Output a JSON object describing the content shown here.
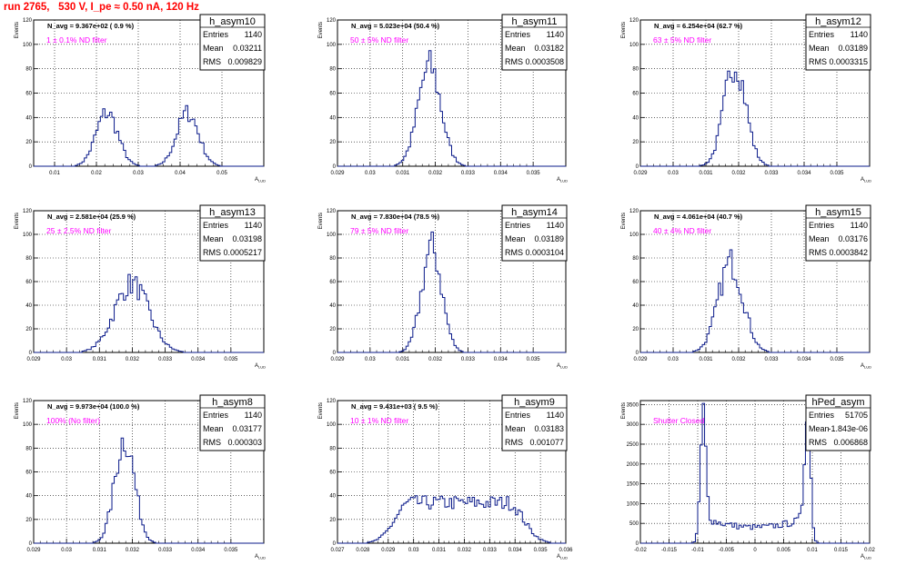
{
  "page_title": "run 2765,   530 V, I_pe ≈ 0.50 nA, 120 Hz",
  "chart_data": [
    {
      "type": "histogram",
      "hist_name": "h_asym10",
      "ylabel": "Events",
      "xlabel": "A_{LUD}",
      "navg_text": "N_avg = 9.367e+02 ( 0.9 %)",
      "filter_text": "1 ± 0.1% ND filter",
      "stats": [
        [
          "Entries",
          "1140"
        ],
        [
          "Mean",
          "0.03211"
        ],
        [
          "RMS",
          "0.009829"
        ]
      ],
      "xlim": [
        0.005,
        0.06
      ],
      "ylim": [
        0,
        120
      ],
      "xticks": [
        0.01,
        0.02,
        0.03,
        0.04,
        0.05
      ],
      "xtick_labels": [
        "0.01",
        "0.02",
        "0.03",
        "0.04",
        "0.05"
      ],
      "yticks": [
        0,
        20,
        40,
        60,
        80,
        100,
        120
      ],
      "peaks": [
        {
          "center": 0.0225,
          "sigma": 0.0026,
          "amplitude": 44
        },
        {
          "center": 0.0418,
          "sigma": 0.0026,
          "amplitude": 44
        }
      ]
    },
    {
      "type": "histogram",
      "hist_name": "h_asym11",
      "ylabel": "Events",
      "xlabel": "A_{LUD}",
      "navg_text": "N_avg = 5.023e+04 (50.4 %)",
      "filter_text": "50 ± 5% ND filter",
      "stats": [
        [
          "Entries",
          "1140"
        ],
        [
          "Mean",
          "0.03182"
        ],
        [
          "RMS",
          "0.0003508"
        ]
      ],
      "xlim": [
        0.029,
        0.036
      ],
      "ylim": [
        0,
        120
      ],
      "xticks": [
        0.029,
        0.03,
        0.031,
        0.032,
        0.033,
        0.034,
        0.035
      ],
      "xtick_labels": [
        "0.029",
        "0.03",
        "0.031",
        "0.032",
        "0.033",
        "0.034",
        "0.035"
      ],
      "yticks": [
        0,
        20,
        40,
        60,
        80,
        100,
        120
      ],
      "peaks": [
        {
          "center": 0.03182,
          "sigma": 0.00035,
          "amplitude": 82
        }
      ]
    },
    {
      "type": "histogram",
      "hist_name": "h_asym12",
      "ylabel": "Events",
      "xlabel": "A_{LUD}",
      "navg_text": "N_avg = 6.254e+04 (62.7 %)",
      "filter_text": "63 ± 5% ND filter",
      "stats": [
        [
          "Entries",
          "1140"
        ],
        [
          "Mean",
          "0.03189"
        ],
        [
          "RMS",
          "0.0003315"
        ]
      ],
      "xlim": [
        0.029,
        0.036
      ],
      "ylim": [
        0,
        120
      ],
      "xticks": [
        0.029,
        0.03,
        0.031,
        0.032,
        0.033,
        0.034,
        0.035
      ],
      "xtick_labels": [
        "0.029",
        "0.03",
        "0.031",
        "0.032",
        "0.033",
        "0.034",
        "0.035"
      ],
      "yticks": [
        0,
        20,
        40,
        60,
        80,
        100,
        120
      ],
      "peaks": [
        {
          "center": 0.03189,
          "sigma": 0.00033,
          "amplitude": 85
        }
      ]
    },
    {
      "type": "histogram",
      "hist_name": "h_asym13",
      "ylabel": "Events",
      "xlabel": "A_{LUD}",
      "navg_text": "N_avg = 2.581e+04 (25.9 %)",
      "filter_text": "25 ± 2.5% ND filter",
      "stats": [
        [
          "Entries",
          "1140"
        ],
        [
          "Mean",
          "0.03198"
        ],
        [
          "RMS",
          "0.0005217"
        ]
      ],
      "xlim": [
        0.029,
        0.036
      ],
      "ylim": [
        0,
        120
      ],
      "xticks": [
        0.029,
        0.03,
        0.031,
        0.032,
        0.033,
        0.034,
        0.035
      ],
      "xtick_labels": [
        "0.029",
        "0.03",
        "0.031",
        "0.032",
        "0.033",
        "0.034",
        "0.035"
      ],
      "yticks": [
        0,
        20,
        40,
        60,
        80,
        100,
        120
      ],
      "peaks": [
        {
          "center": 0.03198,
          "sigma": 0.00052,
          "amplitude": 58
        }
      ]
    },
    {
      "type": "histogram",
      "hist_name": "h_asym14",
      "ylabel": "Events",
      "xlabel": "A_{LUD}",
      "navg_text": "N_avg = 7.830e+04 (78.5 %)",
      "filter_text": "79 ± 5% ND filter",
      "stats": [
        [
          "Entries",
          "1140"
        ],
        [
          "Mean",
          "0.03189"
        ],
        [
          "RMS",
          "0.0003104"
        ]
      ],
      "xlim": [
        0.029,
        0.036
      ],
      "ylim": [
        0,
        120
      ],
      "xticks": [
        0.029,
        0.03,
        0.031,
        0.032,
        0.033,
        0.034,
        0.035
      ],
      "xtick_labels": [
        "0.029",
        "0.03",
        "0.031",
        "0.032",
        "0.033",
        "0.034",
        "0.035"
      ],
      "yticks": [
        0,
        20,
        40,
        60,
        80,
        100,
        120
      ],
      "peaks": [
        {
          "center": 0.03189,
          "sigma": 0.00031,
          "amplitude": 88
        }
      ]
    },
    {
      "type": "histogram",
      "hist_name": "h_asym15",
      "ylabel": "Events",
      "xlabel": "A_{LUD}",
      "navg_text": "N_avg = 4.061e+04 (40.7 %)",
      "filter_text": "40 ± 4% ND filter",
      "stats": [
        [
          "Entries",
          "1140"
        ],
        [
          "Mean",
          "0.03176"
        ],
        [
          "RMS",
          "0.0003842"
        ]
      ],
      "xlim": [
        0.029,
        0.036
      ],
      "ylim": [
        0,
        120
      ],
      "xticks": [
        0.029,
        0.03,
        0.031,
        0.032,
        0.033,
        0.034,
        0.035
      ],
      "xtick_labels": [
        "0.029",
        "0.03",
        "0.031",
        "0.032",
        "0.033",
        "0.034",
        "0.035"
      ],
      "yticks": [
        0,
        20,
        40,
        60,
        80,
        100,
        120
      ],
      "peaks": [
        {
          "center": 0.03176,
          "sigma": 0.00038,
          "amplitude": 76
        }
      ]
    },
    {
      "type": "histogram",
      "hist_name": "h_asym8",
      "ylabel": "Events",
      "xlabel": "A_{LUD}",
      "navg_text": "N_avg = 9.973e+04 (100.0 %)",
      "filter_text": "100% (No filter)",
      "stats": [
        [
          "Entries",
          "1140"
        ],
        [
          "Mean",
          "0.03177"
        ],
        [
          "RMS",
          "0.000303"
        ]
      ],
      "xlim": [
        0.029,
        0.036
      ],
      "ylim": [
        0,
        120
      ],
      "xticks": [
        0.029,
        0.03,
        0.031,
        0.032,
        0.033,
        0.034,
        0.035
      ],
      "xtick_labels": [
        "0.029",
        "0.03",
        "0.031",
        "0.032",
        "0.033",
        "0.034",
        "0.035"
      ],
      "yticks": [
        0,
        20,
        40,
        60,
        80,
        100,
        120
      ],
      "peaks": [
        {
          "center": 0.03177,
          "sigma": 0.0003,
          "amplitude": 88
        }
      ]
    },
    {
      "type": "histogram",
      "hist_name": "h_asym9",
      "ylabel": "Events",
      "xlabel": "A_{LUD}",
      "navg_text": "N_avg = 9.431e+03 ( 9.5 %)",
      "filter_text": "10 ± 1% ND filter",
      "stats": [
        [
          "Entries",
          "1140"
        ],
        [
          "Mean",
          "0.03183"
        ],
        [
          "RMS",
          "0.001077"
        ]
      ],
      "xlim": [
        0.027,
        0.036
      ],
      "ylim": [
        0,
        120
      ],
      "xticks": [
        0.027,
        0.028,
        0.029,
        0.03,
        0.031,
        0.032,
        0.033,
        0.034,
        0.035,
        0.036
      ],
      "xtick_labels": [
        "0.027",
        "0.028",
        "0.029",
        "0.03",
        "0.031",
        "0.032",
        "0.033",
        "0.034",
        "0.035",
        "0.036"
      ],
      "yticks": [
        0,
        20,
        40,
        60,
        80,
        100,
        120
      ],
      "peaks": [
        {
          "center": 0.0318,
          "sigma": 0.0012,
          "amplitude": 34,
          "flat": true
        }
      ]
    },
    {
      "type": "histogram",
      "hist_name": "hPed_asym",
      "ylabel": "Events",
      "xlabel": "A_{LUD}",
      "navg_text": "",
      "filter_text": "Shutter Closed",
      "stats": [
        [
          "Entries",
          "51705"
        ],
        [
          "Mean",
          "-1.843e-06"
        ],
        [
          "RMS",
          "0.006868"
        ]
      ],
      "xlim": [
        -0.02,
        0.02
      ],
      "ylim": [
        0,
        3600
      ],
      "xticks": [
        -0.02,
        -0.015,
        -0.01,
        -0.005,
        0,
        0.005,
        0.01,
        0.015,
        0.02
      ],
      "xtick_labels": [
        "-0.02",
        "-0.015",
        "-0.01",
        "-0.005",
        "0",
        "0.005",
        "0.01",
        "0.015",
        "0.02"
      ],
      "yticks": [
        0,
        500,
        1000,
        1500,
        2000,
        2500,
        3000,
        3500
      ],
      "peaks": [
        {
          "center": -0.0091,
          "sigma": 0.0005,
          "amplitude": 2700,
          "baseline": 450
        },
        {
          "center": 0.0092,
          "sigma": 0.0005,
          "amplitude": 3300,
          "baseline": 450
        }
      ]
    }
  ]
}
